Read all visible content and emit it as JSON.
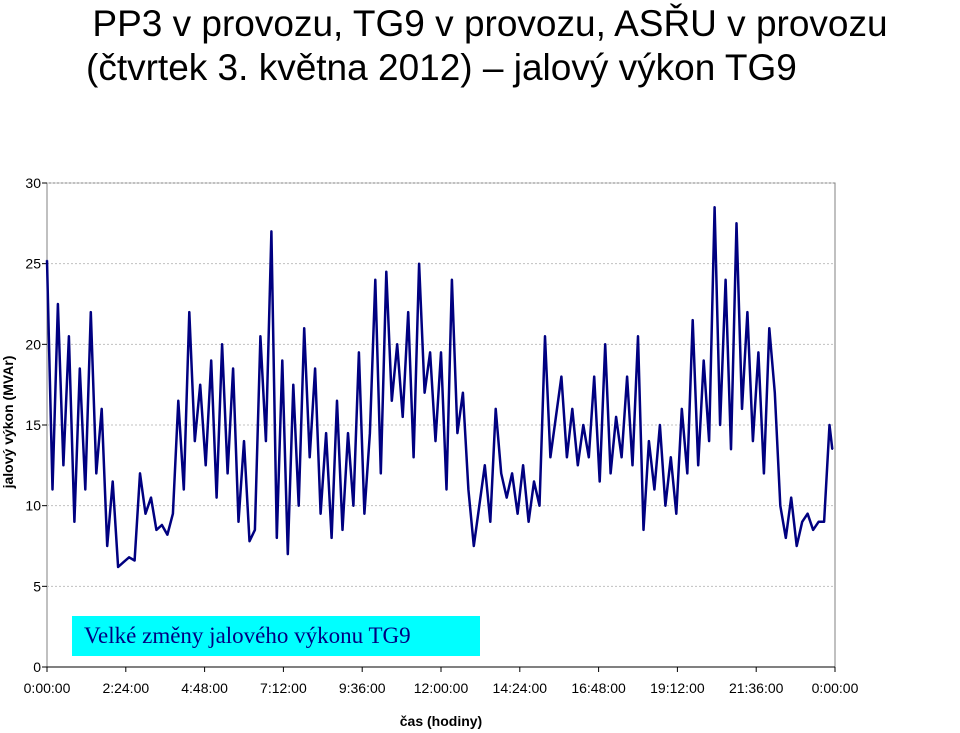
{
  "title": {
    "line1": "PP3 v provozu, TG9 v provozu, ASŘU v provozu",
    "line2": "(čtvrtek 3. května 2012) – jalový výkon TG9"
  },
  "annotation": "Velké změny jalového výkonu TG9",
  "colors": {
    "series": "#000080",
    "annotation_bg": "#00ffff",
    "grid": "#c0c0c0",
    "plot_border": "#808080"
  },
  "chart_data": {
    "type": "line",
    "xlabel": "čas (hodiny)",
    "ylabel": "jalový výkon (MVAr)",
    "ylim": [
      0,
      30
    ],
    "yticks": [
      0,
      5,
      10,
      15,
      20,
      25,
      30
    ],
    "xlim": [
      "0:00:00",
      "24:00:00"
    ],
    "xticks": [
      "0:00:00",
      "2:24:00",
      "4:48:00",
      "7:12:00",
      "9:36:00",
      "12:00:00",
      "14:24:00",
      "16:48:00",
      "19:12:00",
      "21:36:00",
      "0:00:00"
    ],
    "grid": "horizontal-dashed",
    "legend": "none",
    "series": [
      {
        "x": [
          "0:00",
          "0:10",
          "0:20",
          "0:30",
          "0:40",
          "0:50",
          "1:00",
          "1:10",
          "1:20",
          "1:30",
          "1:40",
          "1:50",
          "2:00",
          "2:10",
          "2:20",
          "2:30",
          "2:40",
          "2:50",
          "3:00",
          "3:10",
          "3:20",
          "3:30",
          "3:40",
          "3:50",
          "4:00",
          "4:10",
          "4:20",
          "4:30",
          "4:40",
          "4:50",
          "5:00",
          "5:10",
          "5:20",
          "5:30",
          "5:40",
          "5:50",
          "6:00",
          "6:10",
          "6:20",
          "6:30",
          "6:40",
          "6:50",
          "7:00",
          "7:10",
          "7:20",
          "7:30",
          "7:40",
          "7:50",
          "8:00",
          "8:10",
          "8:20",
          "8:30",
          "8:40",
          "8:50",
          "9:00",
          "9:10",
          "9:20",
          "9:30",
          "9:40",
          "9:50",
          "10:00",
          "10:10",
          "10:20",
          "10:30",
          "10:40",
          "10:50",
          "11:00",
          "11:10",
          "11:20",
          "11:30",
          "11:40",
          "11:50",
          "12:00",
          "12:10",
          "12:20",
          "12:30",
          "12:40",
          "12:50",
          "13:00",
          "13:10",
          "13:20",
          "13:30",
          "13:40",
          "13:50",
          "14:00",
          "14:10",
          "14:20",
          "14:30",
          "14:40",
          "14:50",
          "15:00",
          "15:10",
          "15:20",
          "15:30",
          "15:40",
          "15:50",
          "16:00",
          "16:10",
          "16:20",
          "16:30",
          "16:40",
          "16:50",
          "17:00",
          "17:10",
          "17:20",
          "17:30",
          "17:40",
          "17:50",
          "18:00",
          "18:10",
          "18:20",
          "18:30",
          "18:40",
          "18:50",
          "19:00",
          "19:10",
          "19:20",
          "19:30",
          "19:40",
          "19:50",
          "20:00",
          "20:10",
          "20:20",
          "20:30",
          "20:40",
          "20:50",
          "21:00",
          "21:10",
          "21:20",
          "21:30",
          "21:40",
          "21:50",
          "22:00",
          "22:10",
          "22:20",
          "22:30",
          "22:40",
          "22:50",
          "23:00",
          "23:10",
          "23:20",
          "23:30",
          "23:40",
          "23:50",
          "23:55"
        ],
        "values": [
          25.2,
          11.0,
          22.5,
          12.5,
          20.5,
          9.0,
          18.5,
          11.0,
          22.0,
          12.0,
          16.0,
          7.5,
          11.5,
          6.2,
          6.5,
          6.8,
          6.6,
          12.0,
          9.5,
          10.5,
          8.5,
          8.8,
          8.2,
          9.5,
          16.5,
          11.0,
          22.0,
          14.0,
          17.5,
          12.5,
          19.0,
          10.5,
          20.0,
          12.0,
          18.5,
          9.0,
          14.0,
          7.8,
          8.5,
          20.5,
          14.0,
          27.0,
          8.0,
          19.0,
          7.0,
          17.5,
          10.0,
          21.0,
          13.0,
          18.5,
          9.5,
          14.5,
          8.0,
          16.5,
          8.5,
          14.5,
          10.0,
          19.5,
          9.5,
          14.5,
          24.0,
          12.0,
          24.5,
          16.5,
          20.0,
          15.5,
          22.0,
          13.0,
          25.0,
          17.0,
          19.5,
          14.0,
          19.5,
          11.0,
          24.0,
          14.5,
          17.0,
          11.0,
          7.5,
          10.0,
          12.5,
          9.0,
          16.0,
          12.0,
          10.5,
          12.0,
          9.5,
          12.5,
          9.0,
          11.5,
          10.0,
          20.5,
          13.0,
          15.5,
          18.0,
          13.0,
          16.0,
          12.5,
          15.0,
          13.0,
          18.0,
          11.5,
          20.0,
          12.0,
          15.5,
          13.0,
          18.0,
          12.5,
          20.5,
          8.5,
          14.0,
          11.0,
          15.0,
          10.0,
          13.0,
          9.5,
          16.0,
          12.0,
          21.5,
          12.5,
          19.0,
          14.0,
          28.5,
          15.0,
          24.0,
          13.5,
          27.5,
          16.0,
          22.0,
          14.0,
          19.5,
          12.0,
          21.0,
          17.0,
          10.0,
          8.0,
          10.5,
          7.5,
          9.0,
          9.5,
          8.5,
          9.0,
          9.0,
          15.0,
          13.5
        ]
      }
    ]
  }
}
